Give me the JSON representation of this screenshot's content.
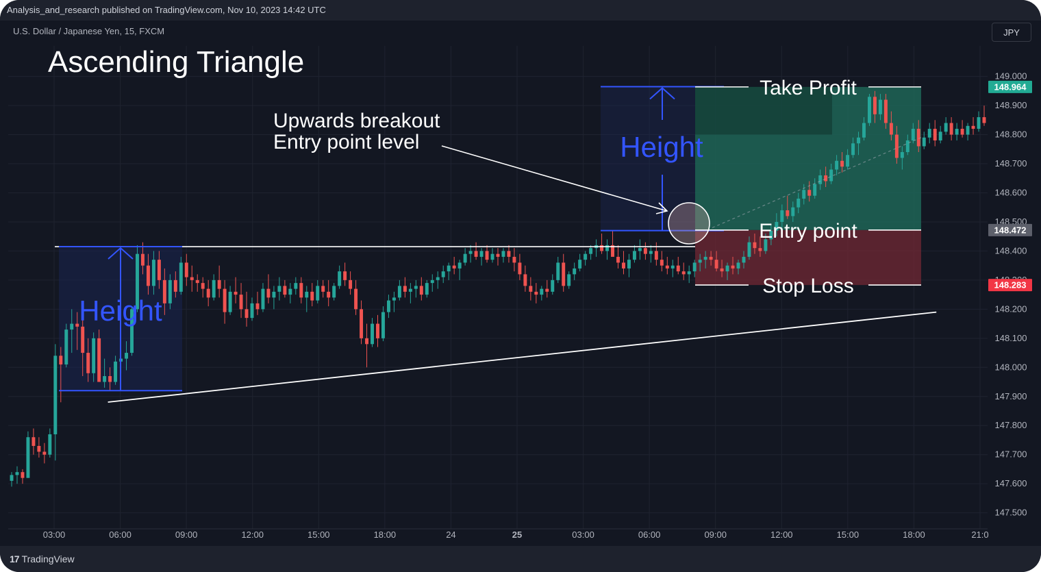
{
  "header": {
    "published_line": "Analysis_and_research published on TradingView.com, Nov 10, 2023 14:42 UTC",
    "symbol_line": "U.S. Dollar / Japanese Yen, 15, FXCM",
    "currency": "JPY"
  },
  "footer": {
    "brand_mark": "17",
    "brand": "TradingView"
  },
  "colors": {
    "background": "#131722",
    "bull": "#26a69a",
    "bear": "#ef5350",
    "annotation_blue": "#3355ff",
    "take_profit_zone": "#1f6b5b",
    "stop_loss_zone": "#6b2733",
    "take_profit_badge": "#22ab94",
    "entry_badge": "#5d606b",
    "stop_badge": "#f23645"
  },
  "chart_data": {
    "type": "candlestick",
    "title": "Ascending Triangle",
    "x_ticks": [
      "03:00",
      "06:00",
      "09:00",
      "12:00",
      "15:00",
      "18:00",
      "24",
      "25",
      "03:00",
      "06:00",
      "09:00",
      "12:00",
      "15:00",
      "18:00",
      "21:0"
    ],
    "x_tick_bold": [
      false,
      false,
      false,
      false,
      false,
      false,
      false,
      true,
      false,
      false,
      false,
      false,
      false,
      false,
      false
    ],
    "y_ticks": [
      "149.000",
      "148.900",
      "148.800",
      "148.700",
      "148.600",
      "148.500",
      "148.400",
      "148.300",
      "148.200",
      "148.100",
      "148.000",
      "147.900",
      "147.800",
      "147.700",
      "147.600",
      "147.500"
    ],
    "ylim": [
      147.445,
      149.105
    ],
    "price_badges": [
      {
        "name": "take-profit",
        "value": "148.964",
        "color": "#22ab94"
      },
      {
        "name": "entry",
        "value": "148.472",
        "color": "#5d606b"
      },
      {
        "name": "stop-loss",
        "value": "148.283",
        "color": "#f23645"
      }
    ],
    "resistance_level": 148.415,
    "support_line": [
      {
        "bar": 18,
        "price": 147.89
      },
      {
        "bar": 169,
        "price": 148.19
      }
    ],
    "pattern_height": {
      "top": 148.415,
      "bottom": 147.92
    },
    "projected_height": {
      "top": 148.965,
      "bottom": 148.47
    },
    "take_profit": 148.964,
    "entry_point": 148.472,
    "stop_loss": 148.283,
    "annotations": {
      "breakout_line1": "Upwards breakout",
      "breakout_line2": "Entry point level",
      "height_label": "Height",
      "take_profit_label": "Take Profit",
      "entry_label": "Entry point",
      "stop_loss_label": "Stop Loss"
    },
    "candles_ohlc": [
      [
        147.61,
        147.64,
        147.59,
        147.63
      ],
      [
        147.63,
        147.66,
        147.6,
        147.64
      ],
      [
        147.64,
        147.65,
        147.6,
        147.62
      ],
      [
        147.62,
        147.78,
        147.62,
        147.76
      ],
      [
        147.76,
        147.79,
        147.7,
        147.73
      ],
      [
        147.73,
        147.76,
        147.69,
        147.71
      ],
      [
        147.71,
        147.74,
        147.67,
        147.7
      ],
      [
        147.7,
        147.79,
        147.69,
        147.77
      ],
      [
        147.77,
        148.08,
        147.68,
        148.04
      ],
      [
        148.04,
        148.07,
        147.88,
        148.01
      ],
      [
        148.01,
        148.15,
        148.0,
        148.13
      ],
      [
        148.13,
        148.2,
        148.05,
        148.15
      ],
      [
        148.15,
        148.19,
        148.06,
        148.14
      ],
      [
        148.14,
        148.18,
        147.97,
        148.05
      ],
      [
        148.05,
        148.1,
        147.95,
        147.98
      ],
      [
        147.98,
        148.12,
        147.95,
        148.1
      ],
      [
        148.1,
        148.13,
        147.96,
        147.95
      ],
      [
        147.95,
        148.03,
        147.93,
        147.97
      ],
      [
        147.97,
        148.0,
        147.92,
        147.95
      ],
      [
        147.95,
        148.04,
        147.94,
        148.02
      ],
      [
        148.02,
        148.06,
        147.98,
        148.03
      ],
      [
        148.03,
        148.09,
        147.99,
        148.05
      ],
      [
        148.05,
        148.21,
        148.04,
        148.2
      ],
      [
        148.2,
        148.42,
        148.19,
        148.39
      ],
      [
        148.39,
        148.43,
        148.32,
        148.35
      ],
      [
        148.35,
        148.39,
        148.25,
        148.28
      ],
      [
        148.28,
        148.4,
        148.25,
        148.37
      ],
      [
        148.37,
        148.4,
        148.27,
        148.3
      ],
      [
        148.3,
        148.34,
        148.18,
        148.22
      ],
      [
        148.22,
        148.32,
        148.2,
        148.3
      ],
      [
        148.3,
        148.33,
        148.24,
        148.26
      ],
      [
        148.26,
        148.38,
        148.25,
        148.36
      ],
      [
        148.36,
        148.39,
        148.28,
        148.31
      ],
      [
        148.31,
        148.35,
        148.26,
        148.3
      ],
      [
        148.3,
        148.32,
        148.26,
        148.29
      ],
      [
        148.29,
        148.31,
        148.24,
        148.27
      ],
      [
        148.27,
        148.3,
        148.21,
        148.24
      ],
      [
        148.24,
        148.32,
        148.23,
        148.3
      ],
      [
        148.3,
        148.35,
        148.24,
        148.27
      ],
      [
        148.27,
        148.3,
        148.15,
        148.19
      ],
      [
        148.19,
        148.28,
        148.18,
        148.26
      ],
      [
        148.26,
        148.31,
        148.22,
        148.25
      ],
      [
        148.25,
        148.29,
        148.17,
        148.2
      ],
      [
        148.2,
        148.26,
        148.14,
        148.17
      ],
      [
        148.17,
        148.24,
        148.16,
        148.22
      ],
      [
        148.22,
        148.26,
        148.18,
        148.2
      ],
      [
        148.2,
        148.29,
        148.19,
        148.27
      ],
      [
        148.27,
        148.32,
        148.22,
        148.24
      ],
      [
        148.24,
        148.28,
        148.2,
        148.26
      ],
      [
        148.26,
        148.31,
        148.23,
        148.28
      ],
      [
        148.28,
        148.3,
        148.24,
        148.25
      ],
      [
        148.25,
        148.29,
        148.22,
        148.27
      ],
      [
        148.27,
        148.31,
        148.25,
        148.29
      ],
      [
        148.29,
        148.31,
        148.22,
        148.24
      ],
      [
        148.24,
        148.28,
        148.19,
        148.26
      ],
      [
        148.26,
        148.29,
        148.21,
        148.23
      ],
      [
        148.23,
        148.3,
        148.22,
        148.28
      ],
      [
        148.28,
        148.3,
        148.24,
        148.26
      ],
      [
        148.26,
        148.3,
        148.21,
        148.24
      ],
      [
        148.24,
        148.29,
        148.23,
        148.28
      ],
      [
        148.28,
        148.35,
        148.27,
        148.33
      ],
      [
        148.33,
        148.36,
        148.28,
        148.3
      ],
      [
        148.3,
        148.33,
        148.25,
        148.27
      ],
      [
        148.27,
        148.3,
        148.18,
        148.2
      ],
      [
        148.2,
        148.23,
        148.08,
        148.1
      ],
      [
        148.1,
        148.15,
        148.0,
        148.08
      ],
      [
        148.08,
        148.17,
        148.07,
        148.15
      ],
      [
        148.15,
        148.18,
        148.07,
        148.1
      ],
      [
        148.1,
        148.21,
        148.09,
        148.19
      ],
      [
        148.19,
        148.25,
        148.17,
        148.23
      ],
      [
        148.23,
        148.26,
        148.19,
        148.24
      ],
      [
        148.24,
        148.3,
        148.23,
        148.28
      ],
      [
        148.28,
        148.31,
        148.24,
        148.26
      ],
      [
        148.26,
        148.29,
        148.22,
        148.27
      ],
      [
        148.27,
        148.3,
        148.24,
        148.28
      ],
      [
        148.28,
        148.31,
        148.23,
        148.25
      ],
      [
        148.25,
        148.3,
        148.24,
        148.29
      ],
      [
        148.29,
        148.32,
        148.26,
        148.3
      ],
      [
        148.3,
        148.33,
        148.27,
        148.31
      ],
      [
        148.31,
        148.35,
        148.29,
        148.33
      ],
      [
        148.33,
        148.36,
        148.3,
        148.35
      ],
      [
        148.35,
        148.38,
        148.32,
        148.34
      ],
      [
        148.34,
        148.37,
        148.3,
        148.36
      ],
      [
        148.36,
        148.41,
        148.35,
        148.39
      ],
      [
        148.39,
        148.42,
        148.36,
        148.4
      ],
      [
        148.4,
        148.43,
        148.37,
        148.38
      ],
      [
        148.38,
        148.41,
        148.35,
        148.4
      ],
      [
        148.4,
        148.42,
        148.36,
        148.37
      ],
      [
        148.37,
        148.41,
        148.36,
        148.39
      ],
      [
        148.39,
        148.41,
        148.35,
        148.38
      ],
      [
        148.38,
        148.41,
        148.36,
        148.4
      ],
      [
        148.4,
        148.42,
        148.36,
        148.38
      ],
      [
        148.38,
        148.41,
        148.33,
        148.36
      ],
      [
        148.36,
        148.39,
        148.3,
        148.32
      ],
      [
        148.32,
        148.35,
        148.26,
        148.28
      ],
      [
        148.28,
        148.31,
        148.23,
        148.26
      ],
      [
        148.26,
        148.29,
        148.22,
        148.25
      ],
      [
        148.25,
        148.28,
        148.23,
        148.27
      ],
      [
        148.27,
        148.3,
        148.24,
        148.26
      ],
      [
        148.26,
        148.32,
        148.25,
        148.3
      ],
      [
        148.3,
        148.38,
        148.29,
        148.36
      ],
      [
        148.36,
        148.39,
        148.26,
        148.28
      ],
      [
        148.28,
        148.33,
        148.27,
        148.32
      ],
      [
        148.32,
        148.36,
        148.3,
        148.34
      ],
      [
        148.34,
        148.39,
        148.33,
        148.37
      ],
      [
        148.37,
        148.4,
        148.35,
        148.39
      ],
      [
        148.39,
        148.42,
        148.37,
        148.41
      ],
      [
        148.41,
        148.44,
        148.38,
        148.42
      ],
      [
        148.42,
        148.46,
        148.39,
        148.4
      ],
      [
        148.4,
        148.44,
        148.37,
        148.42
      ],
      [
        148.42,
        148.47,
        148.39,
        148.38
      ],
      [
        148.38,
        148.42,
        148.34,
        148.36
      ],
      [
        148.36,
        148.4,
        148.32,
        148.34
      ],
      [
        148.34,
        148.39,
        148.31,
        148.37
      ],
      [
        148.37,
        148.42,
        148.36,
        148.4
      ],
      [
        148.4,
        148.44,
        148.37,
        148.41
      ],
      [
        148.41,
        148.43,
        148.37,
        148.39
      ],
      [
        148.39,
        148.42,
        148.36,
        148.4
      ],
      [
        148.4,
        148.43,
        148.35,
        148.37
      ],
      [
        148.37,
        148.4,
        148.33,
        148.35
      ],
      [
        148.35,
        148.38,
        148.32,
        148.34
      ],
      [
        148.34,
        148.37,
        148.31,
        148.35
      ],
      [
        148.35,
        148.38,
        148.32,
        148.33
      ],
      [
        148.33,
        148.36,
        148.3,
        148.32
      ],
      [
        148.32,
        148.35,
        148.29,
        148.33
      ],
      [
        148.33,
        148.37,
        148.31,
        148.36
      ],
      [
        148.36,
        148.39,
        148.33,
        148.37
      ],
      [
        148.37,
        148.4,
        148.34,
        148.38
      ],
      [
        148.38,
        148.4,
        148.35,
        148.37
      ],
      [
        148.37,
        148.4,
        148.33,
        148.34
      ],
      [
        148.34,
        148.37,
        148.31,
        148.33
      ],
      [
        148.33,
        148.36,
        148.3,
        148.35
      ],
      [
        148.35,
        148.38,
        148.32,
        148.34
      ],
      [
        148.34,
        148.37,
        148.32,
        148.36
      ],
      [
        148.36,
        148.4,
        148.34,
        148.38
      ],
      [
        148.38,
        148.45,
        148.37,
        148.43
      ],
      [
        148.43,
        148.46,
        148.39,
        148.41
      ],
      [
        148.41,
        148.45,
        148.38,
        148.4
      ],
      [
        148.4,
        148.46,
        148.39,
        148.44
      ],
      [
        148.44,
        148.49,
        148.42,
        148.47
      ],
      [
        148.47,
        148.53,
        148.45,
        148.5
      ],
      [
        148.5,
        148.56,
        148.48,
        148.54
      ],
      [
        148.54,
        148.59,
        148.51,
        148.52
      ],
      [
        148.52,
        148.57,
        148.5,
        148.55
      ],
      [
        148.55,
        148.6,
        148.53,
        148.58
      ],
      [
        148.58,
        148.63,
        148.56,
        148.61
      ],
      [
        148.61,
        148.64,
        148.57,
        148.59
      ],
      [
        148.59,
        148.65,
        148.58,
        148.63
      ],
      [
        148.63,
        148.68,
        148.61,
        148.66
      ],
      [
        148.66,
        148.69,
        148.62,
        148.64
      ],
      [
        148.64,
        148.7,
        148.63,
        148.68
      ],
      [
        148.68,
        148.73,
        148.66,
        148.71
      ],
      [
        148.71,
        148.74,
        148.67,
        148.69
      ],
      [
        148.69,
        148.75,
        148.68,
        148.73
      ],
      [
        148.73,
        148.79,
        148.72,
        148.77
      ],
      [
        148.77,
        148.81,
        148.73,
        148.79
      ],
      [
        148.79,
        148.86,
        148.78,
        148.84
      ],
      [
        148.84,
        148.94,
        148.83,
        148.93
      ],
      [
        148.93,
        148.95,
        148.84,
        148.87
      ],
      [
        148.87,
        148.94,
        148.85,
        148.92
      ],
      [
        148.92,
        148.94,
        148.82,
        148.84
      ],
      [
        148.84,
        148.88,
        148.78,
        148.8
      ],
      [
        148.8,
        148.83,
        148.7,
        148.72
      ],
      [
        148.72,
        148.76,
        148.68,
        148.74
      ],
      [
        148.74,
        148.8,
        148.73,
        148.78
      ],
      [
        148.78,
        148.84,
        148.77,
        148.82
      ],
      [
        148.82,
        148.85,
        148.74,
        148.76
      ],
      [
        148.76,
        148.81,
        148.75,
        148.79
      ],
      [
        148.79,
        148.84,
        148.77,
        148.82
      ],
      [
        148.82,
        148.85,
        148.76,
        148.78
      ],
      [
        148.78,
        148.83,
        148.77,
        148.81
      ],
      [
        148.81,
        148.86,
        148.8,
        148.84
      ],
      [
        148.84,
        148.86,
        148.78,
        148.8
      ],
      [
        148.8,
        148.84,
        148.78,
        148.82
      ],
      [
        148.82,
        148.85,
        148.79,
        148.8
      ],
      [
        148.8,
        148.84,
        148.78,
        148.83
      ],
      [
        148.83,
        148.86,
        148.8,
        148.82
      ],
      [
        148.82,
        148.88,
        148.81,
        148.86
      ],
      [
        148.86,
        148.9,
        148.83,
        148.84
      ]
    ]
  }
}
